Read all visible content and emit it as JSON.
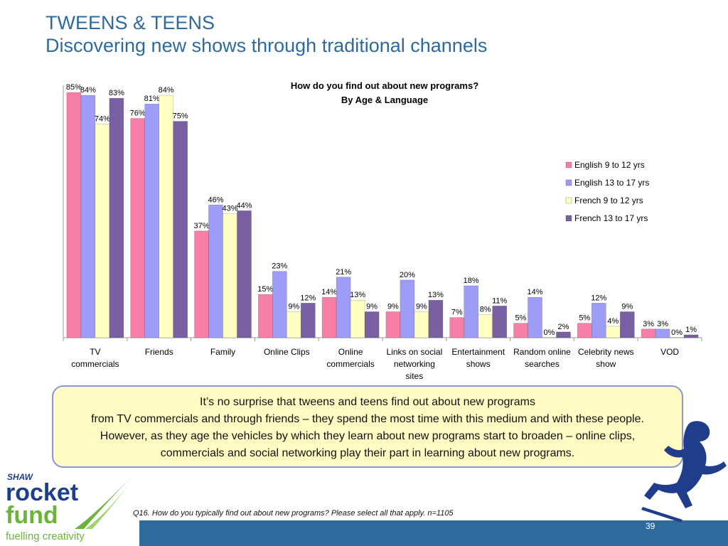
{
  "slide": {
    "title_line1": "TWEENS & TEENS",
    "title_line2": "Discovering new shows through traditional channels",
    "summary_line1": "It’s no surprise that tweens and teens find out about new programs",
    "summary_line2": "from TV commercials and through friends – they spend the most time with this medium and with these people.  However, as they age the vehicles by which they learn about new programs start to broaden – online clips, commercials and social networking play their part in learning about new programs.",
    "footnote": "Q16. How do you typically find out about new programs? Please select all that apply. n=1105",
    "page_number": "39"
  },
  "logo": {
    "shaw": "SHAW",
    "rocket": "rocket",
    "fund": "fund",
    "tagline": "fuelling creativity"
  },
  "chart_data": {
    "type": "bar",
    "title_line1": "How do you find out about new programs?",
    "title_line2": "By Age & Language",
    "categories": [
      [
        "TV",
        "commercials"
      ],
      [
        "Friends"
      ],
      [
        "Family"
      ],
      [
        "Online Clips"
      ],
      [
        "Online",
        "commercials"
      ],
      [
        "Links on social",
        "networking",
        "sites"
      ],
      [
        "Entertainment",
        "shows"
      ],
      [
        "Random online",
        "searches"
      ],
      [
        "Celebrity news",
        "show"
      ],
      [
        "VOD"
      ]
    ],
    "series": [
      {
        "name": "English 9 to 12 yrs",
        "color": "#f77fa7",
        "values": [
          85,
          76,
          37,
          15,
          14,
          9,
          7,
          5,
          5,
          3
        ]
      },
      {
        "name": "English 13 to 17 yrs",
        "color": "#9d9cf7",
        "values": [
          84,
          81,
          46,
          23,
          21,
          20,
          18,
          14,
          12,
          3
        ]
      },
      {
        "name": "French 9 to 12 yrs",
        "color": "#ffffc2",
        "values": [
          74,
          84,
          43,
          9,
          13,
          9,
          8,
          0,
          4,
          0
        ]
      },
      {
        "name": "French 13 to 17 yrs",
        "color": "#7a5fa3",
        "values": [
          83,
          75,
          44,
          12,
          9,
          13,
          11,
          2,
          9,
          1
        ]
      }
    ],
    "ylim": [
      0,
      85
    ],
    "legend_position": "right",
    "grid": false
  }
}
